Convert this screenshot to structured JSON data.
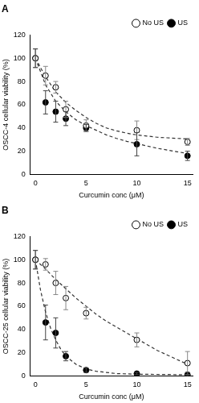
{
  "chart_data": [
    {
      "type": "scatter",
      "title": "A",
      "x_label": "Curcumin conc (μM)",
      "y_label": "OSCC-4 cellular viability (%)",
      "xlim": [
        -0.5,
        15.5
      ],
      "xticks": [
        0,
        5,
        10,
        15
      ],
      "ylim": [
        0,
        120
      ],
      "yticks": [
        0,
        20,
        40,
        60,
        80,
        100,
        120
      ],
      "grid": false,
      "legend": "upper right",
      "series": [
        {
          "type": "line",
          "line_style": "dashed",
          "color": "#333333",
          "x": [
            0,
            1,
            2,
            3,
            4,
            5,
            6,
            7,
            8,
            9,
            10,
            11,
            12,
            13,
            14,
            15
          ],
          "values": [
            100,
            84,
            71,
            62,
            55,
            49,
            44,
            40,
            37.5,
            35.5,
            34,
            33,
            32,
            31.5,
            31,
            30.5
          ]
        },
        {
          "type": "line",
          "line_style": "dashed",
          "color": "#333333",
          "x": [
            0,
            1,
            2,
            3,
            4,
            5,
            6,
            7,
            8,
            9,
            10,
            11,
            12,
            13,
            14,
            15
          ],
          "values": [
            100,
            77,
            63,
            54,
            47,
            42,
            38,
            34,
            31,
            28.5,
            26.5,
            24.5,
            22.5,
            21,
            19.5,
            18
          ]
        },
        {
          "name": "No US",
          "marker": "circle-open",
          "color": "#000000",
          "x": [
            0,
            1,
            2,
            3,
            5,
            10,
            15
          ],
          "values": [
            100,
            85,
            75,
            56,
            42,
            38,
            28
          ],
          "errors": [
            8,
            8,
            5,
            7,
            5,
            8,
            3
          ]
        },
        {
          "name": "US",
          "marker": "circle",
          "color": "#000000",
          "x": [
            0,
            1,
            2,
            3,
            5,
            10,
            15
          ],
          "values": [
            100,
            62,
            54,
            48,
            40,
            26,
            16
          ],
          "errors": [
            8,
            10,
            9,
            6,
            3,
            10,
            4
          ]
        }
      ]
    },
    {
      "type": "scatter",
      "title": "B",
      "x_label": "Curcumin conc (μM)",
      "y_label": "OSCC-25 cellular viability (%)",
      "xlim": [
        -0.5,
        15.5
      ],
      "xticks": [
        0,
        5,
        10,
        15
      ],
      "ylim": [
        0,
        120
      ],
      "yticks": [
        0,
        20,
        40,
        60,
        80,
        100,
        120
      ],
      "grid": false,
      "legend": "upper right",
      "series": [
        {
          "type": "line",
          "line_style": "dashed",
          "color": "#333333",
          "x": [
            0,
            1,
            2,
            3,
            4,
            5,
            6,
            7,
            8,
            9,
            10,
            11,
            12,
            13,
            14,
            15
          ],
          "values": [
            100,
            92,
            83,
            75,
            67,
            60,
            53,
            47,
            42,
            37,
            32,
            27,
            22,
            18,
            14,
            10
          ]
        },
        {
          "type": "line",
          "line_style": "dashed",
          "color": "#333333",
          "x": [
            0,
            0.5,
            1,
            1.5,
            2,
            2.5,
            3,
            4,
            5,
            6,
            7,
            8,
            10,
            15
          ],
          "values": [
            100,
            74,
            55,
            41,
            31,
            23,
            17,
            10,
            6,
            4,
            3,
            2,
            1.5,
            1
          ]
        },
        {
          "name": "No US",
          "marker": "circle-open",
          "color": "#000000",
          "x": [
            0,
            1,
            2,
            3,
            5,
            10,
            15
          ],
          "values": [
            100,
            96,
            80,
            67,
            54,
            31,
            11
          ],
          "errors": [
            8,
            5,
            10,
            10,
            5,
            6,
            10
          ]
        },
        {
          "name": "US",
          "marker": "circle",
          "color": "#000000",
          "x": [
            0,
            1,
            2,
            3,
            5,
            10,
            15
          ],
          "values": [
            100,
            46,
            37,
            17,
            5,
            2,
            1
          ],
          "errors": [
            8,
            15,
            13,
            4,
            2,
            1,
            2
          ]
        }
      ]
    }
  ]
}
